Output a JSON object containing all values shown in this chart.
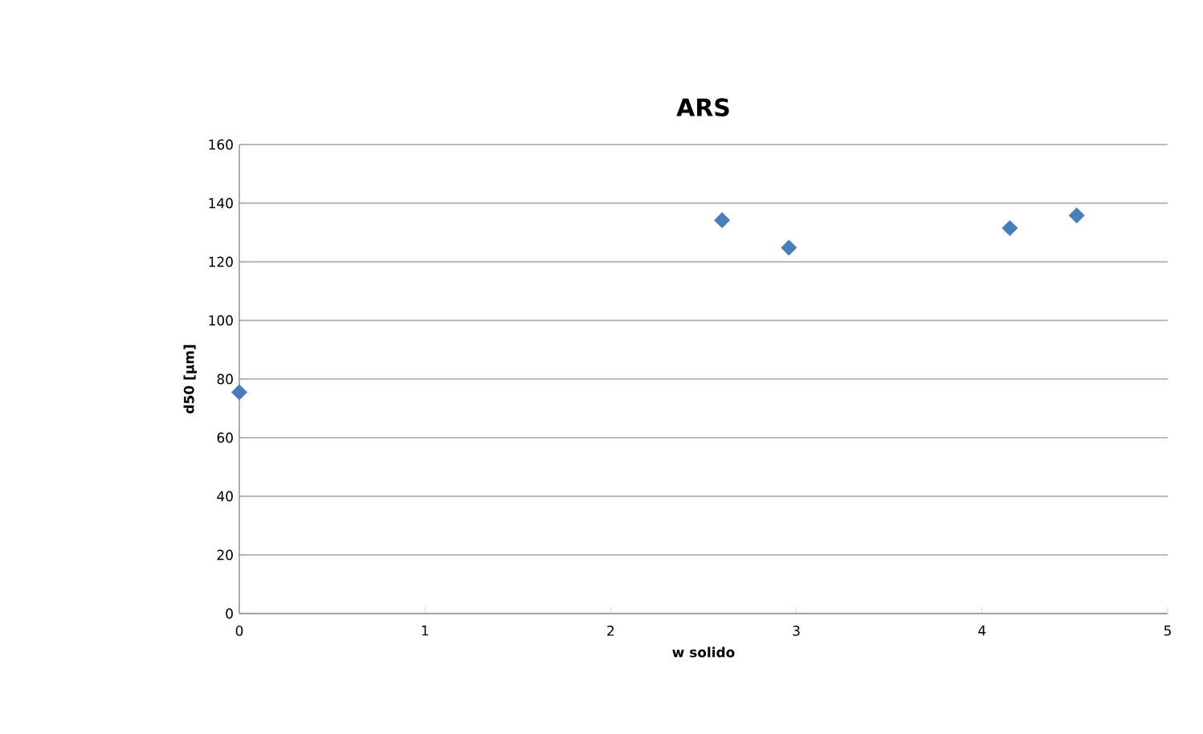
{
  "chart_data": {
    "type": "scatter",
    "title": "ARS",
    "xlabel": "w solido",
    "ylabel": "d50 [μm]",
    "x": [
      0,
      2.6,
      2.96,
      4.15,
      4.51
    ],
    "values": [
      75.5,
      134.2,
      124.8,
      131.5,
      135.8
    ],
    "color": "#4a7ebb",
    "marker": "diamond",
    "xlim": [
      0,
      5
    ],
    "xticks": [
      0,
      1,
      2,
      3,
      4,
      5
    ],
    "ylim": [
      0,
      160
    ],
    "yticks": [
      0,
      20,
      40,
      60,
      80,
      100,
      120,
      140,
      160
    ],
    "grid": "y"
  }
}
